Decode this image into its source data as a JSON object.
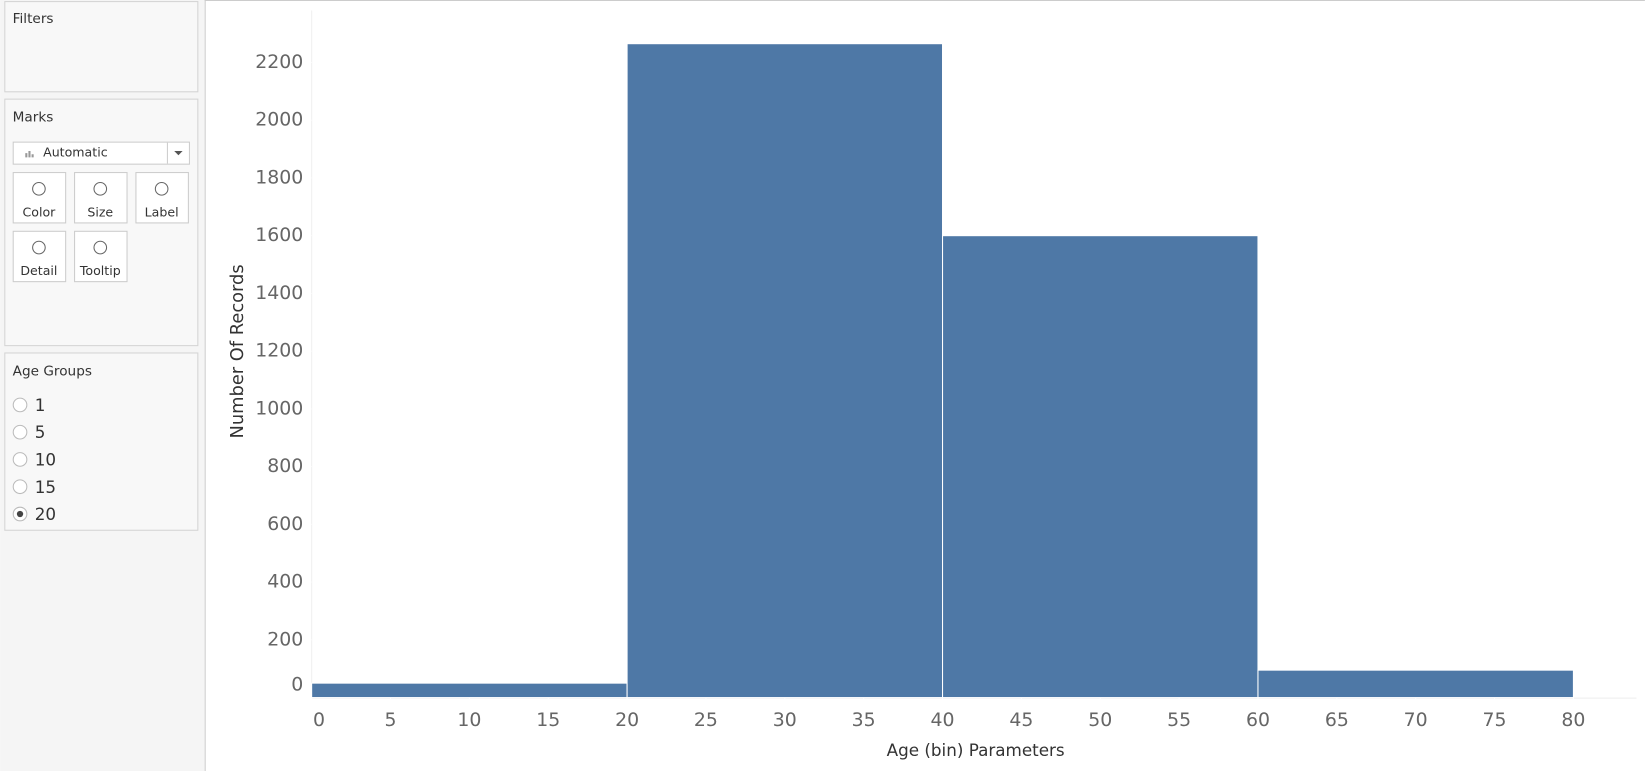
{
  "sidebar": {
    "filters_title": "Filters",
    "marks_title": "Marks",
    "mark_type": "Automatic",
    "mark_buttons": [
      "Color",
      "Size",
      "Label",
      "Detail",
      "Tooltip"
    ],
    "parameter_title": "Age Groups",
    "parameter_options": [
      "1",
      "5",
      "10",
      "15",
      "20"
    ],
    "selected_option": 4
  },
  "chart_data": {
    "type": "histogram",
    "x_label": "Age (bin) Parameters",
    "y_label": "Number Of Records",
    "bins": [
      0,
      20,
      40,
      60,
      80
    ],
    "values": [
      50,
      2265,
      1600,
      95
    ],
    "color": "#4e78a6",
    "xlim": [
      0,
      84
    ],
    "xticks": [
      0,
      5,
      10,
      15,
      20,
      25,
      30,
      35,
      40,
      45,
      50,
      55,
      60,
      65,
      70,
      75,
      80
    ],
    "ylim": [
      0,
      2380
    ],
    "yticks": [
      0,
      200,
      400,
      600,
      800,
      1000,
      1200,
      1400,
      1600,
      1800,
      2000,
      2200
    ]
  }
}
